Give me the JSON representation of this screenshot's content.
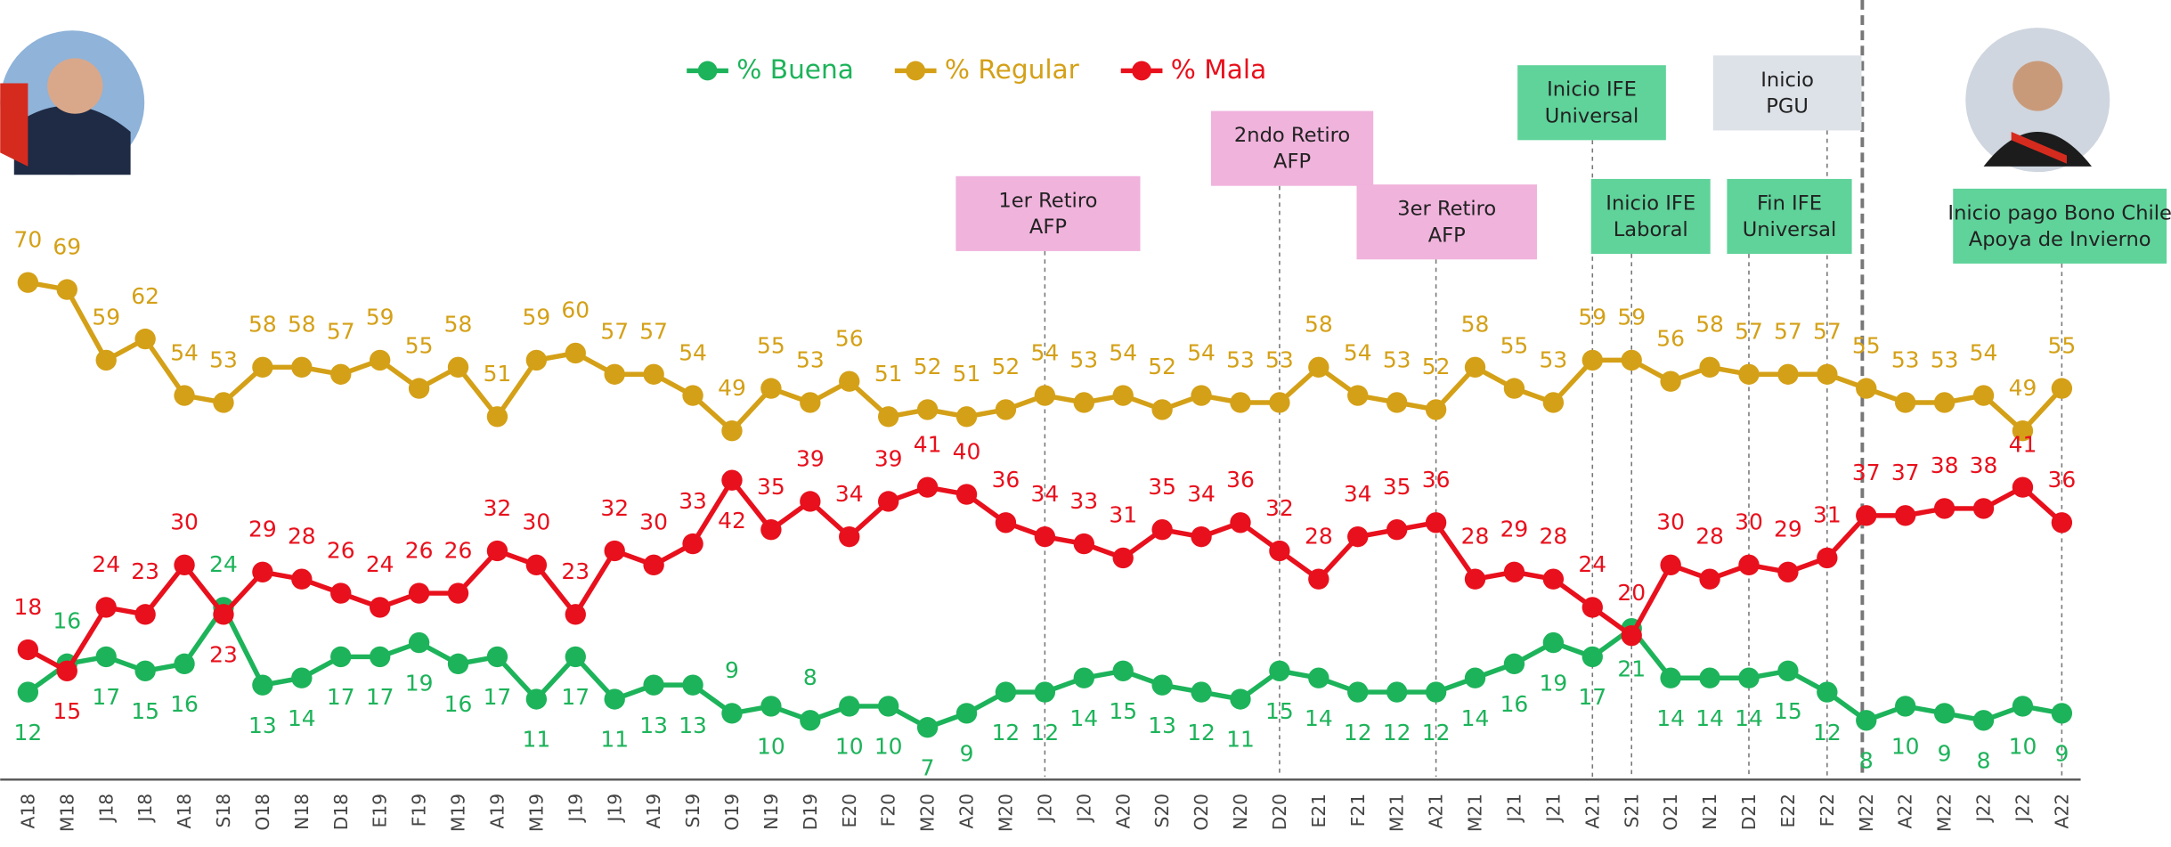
{
  "chart_data": {
    "type": "line",
    "categories": [
      "A18",
      "M18",
      "J18",
      "J18",
      "A18",
      "S18",
      "O18",
      "N18",
      "D18",
      "E19",
      "F19",
      "M19",
      "A19",
      "M19",
      "J19",
      "J19",
      "A19",
      "S19",
      "O19",
      "N19",
      "D19",
      "E20",
      "F20",
      "M20",
      "A20",
      "M20",
      "J20",
      "J20",
      "A20",
      "S20",
      "O20",
      "N20",
      "D20",
      "E21",
      "F21",
      "M21",
      "A21",
      "M21",
      "J21",
      "J21",
      "A21",
      "S21",
      "O21",
      "N21",
      "D21",
      "E22",
      "F22",
      "M22",
      "A22",
      "M22",
      "J22",
      "J22",
      "A22"
    ],
    "series": [
      {
        "name": "% Buena",
        "color": "#1db35a",
        "values": [
          12,
          16,
          17,
          15,
          16,
          24,
          13,
          14,
          17,
          17,
          19,
          16,
          17,
          11,
          17,
          11,
          13,
          13,
          9,
          10,
          8,
          10,
          10,
          7,
          9,
          12,
          12,
          14,
          15,
          13,
          12,
          11,
          15,
          14,
          12,
          12,
          12,
          14,
          16,
          19,
          17,
          21,
          14,
          14,
          14,
          15,
          12,
          8,
          10,
          9,
          8,
          10,
          9
        ]
      },
      {
        "name": "% Regular",
        "color": "#d4a017",
        "values": [
          70,
          69,
          59,
          62,
          54,
          53,
          58,
          58,
          57,
          59,
          55,
          58,
          51,
          59,
          60,
          57,
          57,
          54,
          49,
          55,
          53,
          56,
          51,
          52,
          51,
          52,
          54,
          53,
          54,
          52,
          54,
          53,
          53,
          58,
          54,
          53,
          52,
          58,
          55,
          53,
          59,
          59,
          56,
          58,
          57,
          57,
          57,
          55,
          53,
          53,
          54,
          49,
          55
        ]
      },
      {
        "name": "% Mala",
        "color": "#e8101c",
        "values": [
          18,
          15,
          24,
          23,
          30,
          23,
          29,
          28,
          26,
          24,
          26,
          26,
          32,
          30,
          23,
          32,
          30,
          33,
          42,
          35,
          39,
          34,
          39,
          41,
          40,
          36,
          34,
          33,
          31,
          35,
          34,
          36,
          32,
          28,
          34,
          35,
          36,
          28,
          29,
          28,
          24,
          20,
          30,
          28,
          30,
          29,
          31,
          37,
          37,
          38,
          38,
          41,
          36
        ]
      }
    ],
    "ylim": [
      0,
      110
    ],
    "annotations": [
      {
        "lines": [
          "1er Retiro",
          "AFP"
        ],
        "color": "#f0b3dc"
      },
      {
        "lines": [
          "2ndo Retiro",
          "AFP"
        ],
        "color": "#f0b3dc"
      },
      {
        "lines": [
          "3er Retiro",
          "AFP"
        ],
        "color": "#f0b3dc"
      },
      {
        "lines": [
          "Inicio IFE",
          "Universal"
        ],
        "color": "#5fd39a"
      },
      {
        "lines": [
          "Inicio IFE",
          "Laboral"
        ],
        "color": "#5fd39a"
      },
      {
        "lines": [
          "Inicio",
          "PGU"
        ],
        "color": "#dde1e8"
      },
      {
        "lines": [
          "Fin IFE",
          "Universal"
        ],
        "color": "#5fd39a"
      },
      {
        "lines": [
          "Inicio pago Bono Chile",
          "Apoya de Invierno"
        ],
        "color": "#5fd39a"
      }
    ]
  }
}
